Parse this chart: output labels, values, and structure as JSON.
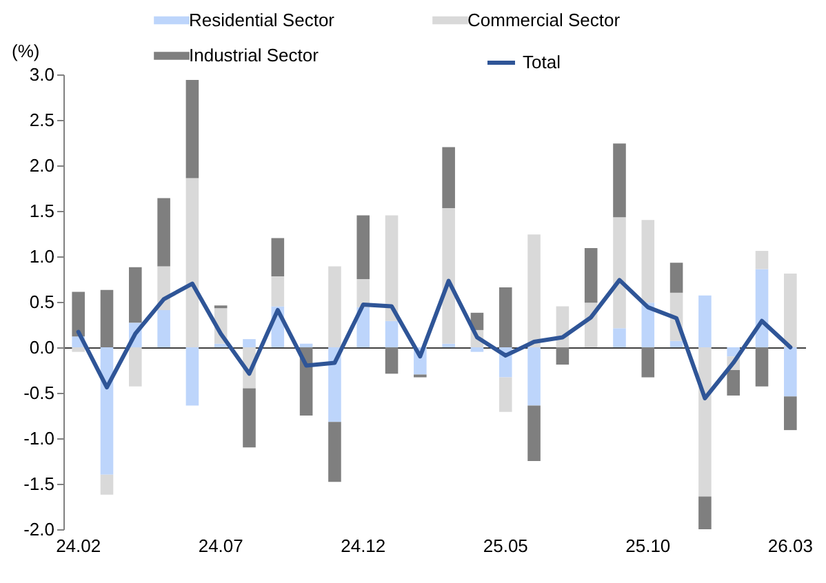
{
  "chart_data": {
    "type": "bar",
    "stacked": true,
    "ylabel": "(%)",
    "categories": [
      "24.02",
      null,
      null,
      null,
      null,
      "24.07",
      null,
      null,
      null,
      null,
      "24.12",
      null,
      null,
      null,
      null,
      "25.05",
      null,
      null,
      null,
      null,
      "25.10",
      null,
      null,
      null,
      null,
      "26.03"
    ],
    "series": [
      {
        "name": "Residential Sector",
        "color": "#bdd5fb",
        "values": [
          0.12,
          -1.4,
          0.27,
          0.41,
          -0.64,
          0.04,
          0.09,
          0.45,
          0.04,
          -0.82,
          0.44,
          0.29,
          -0.3,
          0.04,
          -0.05,
          -0.33,
          -0.64,
          0.0,
          null,
          0.21,
          0.49,
          0.07,
          0.57,
          -0.1,
          0.86,
          -0.54
        ]
      },
      {
        "name": "Commercial Sector",
        "color": "#d9d9d9",
        "values": [
          -0.05,
          -0.22,
          -0.43,
          0.48,
          1.86,
          0.39,
          -0.45,
          0.33,
          0.0,
          0.89,
          0.31,
          1.16,
          0.0,
          1.49,
          0.19,
          -0.38,
          1.24,
          0.45,
          0.49,
          1.22,
          0.91,
          0.53,
          -1.64,
          -0.15,
          0.2,
          0.81
        ]
      },
      {
        "name": "Industrial Sector",
        "color": "#7f7f7f",
        "values": [
          0.49,
          0.63,
          0.61,
          0.75,
          1.08,
          0.03,
          -0.65,
          0.42,
          -0.75,
          -0.66,
          0.7,
          -0.29,
          -0.03,
          0.67,
          0.19,
          0.66,
          -0.61,
          -0.19,
          0.6,
          0.81,
          -0.33,
          0.33,
          -0.36,
          -0.28,
          -0.43,
          -0.37
        ]
      },
      {
        "name": "Total",
        "type": "line",
        "color": "#2f5597",
        "values": [
          0.17,
          -0.44,
          0.15,
          0.53,
          0.7,
          0.15,
          -0.29,
          0.41,
          -0.2,
          -0.17,
          0.47,
          0.45,
          -0.1,
          0.73,
          0.11,
          -0.09,
          0.06,
          0.11,
          0.33,
          0.74,
          0.44,
          0.32,
          -0.56,
          -0.17,
          0.29,
          0.0
        ]
      }
    ],
    "ylim": [
      -2.0,
      3.0
    ],
    "yticks": [
      {
        "value": -2,
        "label": "-2.0"
      },
      {
        "value": -1.5,
        "label": "-1.5"
      },
      {
        "value": -1,
        "label": "-1.0"
      },
      {
        "value": -0.5,
        "label": "-0.5"
      },
      {
        "value": 0,
        "label": "0.0"
      },
      {
        "value": 0.5,
        "label": "0.5"
      },
      {
        "value": 1,
        "label": "1.0"
      },
      {
        "value": 1.5,
        "label": "1.5"
      },
      {
        "value": 2,
        "label": "2.0"
      },
      {
        "value": 2.5,
        "label": "2.5"
      },
      {
        "value": 3,
        "label": "3.0"
      }
    ],
    "legend": "top"
  }
}
